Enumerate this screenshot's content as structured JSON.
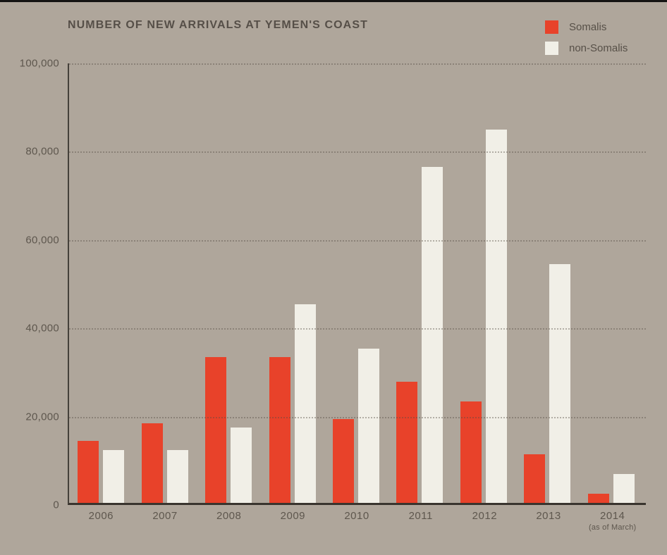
{
  "page": {
    "background_color": "#afa69b",
    "top_border_color": "#151413"
  },
  "chart_data": {
    "type": "bar",
    "title": "NUMBER OF NEW ARRIVALS AT YEMEN'S COAST",
    "xlabel": "",
    "ylabel": "",
    "categories": [
      "2006",
      "2007",
      "2008",
      "2009",
      "2010",
      "2011",
      "2012",
      "2013",
      "2014"
    ],
    "category_notes": [
      "",
      "",
      "",
      "",
      "",
      "",
      "",
      "",
      "(as of March)"
    ],
    "series": [
      {
        "name": "Somalis",
        "color": "#e8422a",
        "values": [
          14000,
          18000,
          33000,
          33000,
          19000,
          27500,
          23000,
          11000,
          2000
        ]
      },
      {
        "name": "non-Somalis",
        "color": "#f1efe7",
        "values": [
          12000,
          12000,
          17000,
          45000,
          35000,
          76000,
          84500,
          54000,
          6500
        ]
      }
    ],
    "ylim": [
      0,
      100000
    ],
    "y_ticks": [
      {
        "value": 100000,
        "label": "100,000"
      },
      {
        "value": 80000,
        "label": "80,000"
      },
      {
        "value": 60000,
        "label": "60,000"
      },
      {
        "value": 40000,
        "label": "40,000"
      },
      {
        "value": 20000,
        "label": "20,000"
      },
      {
        "value": 0,
        "label": "0"
      }
    ],
    "grid": "horizontal-dotted",
    "legend_position": "top-right"
  }
}
